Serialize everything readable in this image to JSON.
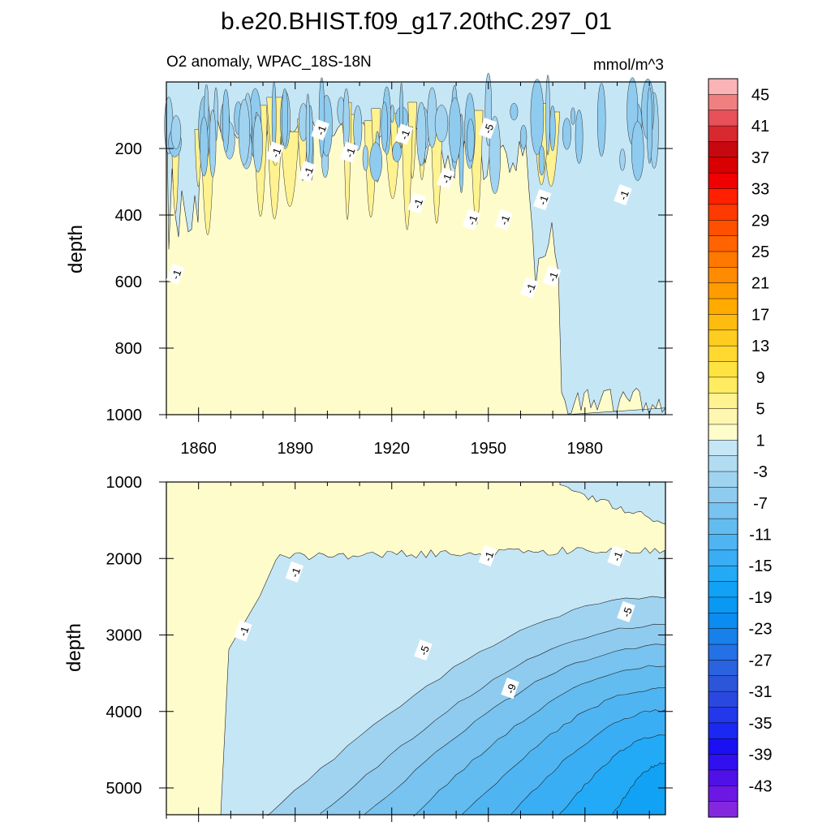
{
  "title": "b.e20.BHIST.f09_g17.20thC.297_01",
  "chart_data": [
    {
      "type": "filled-contour",
      "panel": "upper",
      "title": "O2 anomaly, WPAC_18S-18N",
      "units": "mmol/m^3",
      "xlabel": "",
      "ylabel": "depth",
      "xlim": [
        1850,
        2005
      ],
      "ylim": [
        1000,
        0
      ],
      "x_ticks": [
        1860,
        1890,
        1920,
        1950,
        1980
      ],
      "y_ticks": [
        200,
        400,
        600,
        800,
        1000
      ],
      "contour_labels": [
        {
          "text": "-1",
          "year": 1853,
          "depth": 578
        },
        {
          "text": "-1",
          "year": 1884,
          "depth": 212
        },
        {
          "text": "-1",
          "year": 1898,
          "depth": 145
        },
        {
          "text": "-1",
          "year": 1894,
          "depth": 270
        },
        {
          "text": "-1",
          "year": 1907,
          "depth": 212
        },
        {
          "text": "-1",
          "year": 1924,
          "depth": 158
        },
        {
          "text": "-1",
          "year": 1928,
          "depth": 365
        },
        {
          "text": "-1",
          "year": 1937,
          "depth": 290
        },
        {
          "text": "-5",
          "year": 1950,
          "depth": 140
        },
        {
          "text": "-1",
          "year": 1945,
          "depth": 415
        },
        {
          "text": "-1",
          "year": 1955,
          "depth": 415
        },
        {
          "text": "-1",
          "year": 1967,
          "depth": 355
        },
        {
          "text": "-1",
          "year": 1963,
          "depth": 620
        },
        {
          "text": "-1",
          "year": 1970,
          "depth": 585
        },
        {
          "text": "-1",
          "year": 1992,
          "depth": 340
        }
      ]
    },
    {
      "type": "filled-contour",
      "panel": "lower",
      "xlabel": "",
      "ylabel": "depth",
      "xlim": [
        1850,
        2005
      ],
      "ylim": [
        5350,
        1000
      ],
      "y_ticks": [
        1000,
        2000,
        3000,
        4000,
        5000
      ],
      "contour_levels": [
        -1,
        -3,
        -5,
        -7,
        -9,
        -11,
        -13,
        -15,
        -17
      ],
      "contour_labels": [
        {
          "text": "-1",
          "year": 1874,
          "depth": 2950
        },
        {
          "text": "-1",
          "year": 1890,
          "depth": 2180
        },
        {
          "text": "-1",
          "year": 1950,
          "depth": 1970
        },
        {
          "text": "-1",
          "year": 1990,
          "depth": 1970
        },
        {
          "text": "-5",
          "year": 1930,
          "depth": 3200
        },
        {
          "text": "-5",
          "year": 1993,
          "depth": 2700
        },
        {
          "text": "-9",
          "year": 1957,
          "depth": 3700
        }
      ]
    }
  ],
  "colorbar": {
    "labels": [
      "45",
      "41",
      "37",
      "33",
      "29",
      "25",
      "21",
      "17",
      "13",
      "9",
      "5",
      "1",
      "-3",
      "-7",
      "-11",
      "-15",
      "-19",
      "-23",
      "-27",
      "-31",
      "-35",
      "-39",
      "-43"
    ],
    "colors": [
      "#fbb4b6",
      "#f08080",
      "#e8505a",
      "#d82830",
      "#c80810",
      "#d80000",
      "#f00000",
      "#ff2000",
      "#ff3a00",
      "#ff5000",
      "#ff6400",
      "#ff7800",
      "#ff8c00",
      "#ff9c00",
      "#ffab00",
      "#ffbc10",
      "#ffcc20",
      "#ffd830",
      "#ffe340",
      "#ffec60",
      "#fff290",
      "#fff7b0",
      "#fffccc",
      "#c5e6f5",
      "#b2dcf2",
      "#a0d3f0",
      "#8ecbef",
      "#78c3ef",
      "#62bcef",
      "#4fb5f2",
      "#3aaef4",
      "#22aaf6",
      "#12a2f5",
      "#0a98f5",
      "#0a8cf0",
      "#1880ea",
      "#2470e6",
      "#2a62e0",
      "#2c56da",
      "#2a48e0",
      "#2238ea",
      "#1a28f2",
      "#1a10f2",
      "#3010ee",
      "#5010e8",
      "#6c18e4",
      "#8428e0"
    ]
  }
}
